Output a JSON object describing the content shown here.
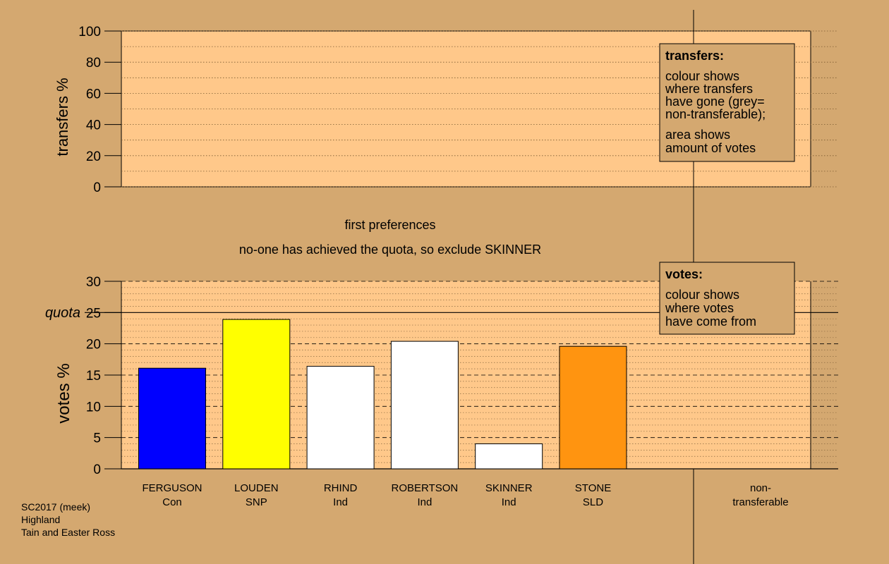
{
  "colors": {
    "background": "#d4a870",
    "plot_fill": "#ffc88a",
    "legend_fill": "#d4a870",
    "non_transferable": "#a0a0a0"
  },
  "top_panel": {
    "ylabel": "transfers %",
    "ticks": [
      "0",
      "20",
      "40",
      "60",
      "80",
      "100"
    ],
    "legend": {
      "title": "transfers:",
      "lines1": [
        "colour shows",
        "where transfers",
        "have gone (grey=",
        "non-transferable);"
      ],
      "lines2": [
        "area shows",
        "amount of votes"
      ]
    }
  },
  "captions": {
    "stage": "first preferences",
    "action": "no-one has achieved the quota, so exclude SKINNER"
  },
  "bottom_panel": {
    "legend": {
      "title": "votes:",
      "lines": [
        "colour shows",
        "where votes",
        "have come from"
      ]
    }
  },
  "chart_data": {
    "type": "bar",
    "xlabel": "",
    "ylabel": "votes %",
    "ylim": [
      0,
      30
    ],
    "yticks": [
      "0",
      "5",
      "10",
      "15",
      "20",
      "25",
      "30"
    ],
    "quota": 25,
    "quota_label": "quota",
    "categories": [
      {
        "name": "FERGUSON",
        "party": "Con",
        "value": 16.1,
        "color": "#0000ff"
      },
      {
        "name": "LOUDEN",
        "party": "SNP",
        "value": 23.9,
        "color": "#ffff00"
      },
      {
        "name": "RHIND",
        "party": "Ind",
        "value": 16.4,
        "color": "#ffffff"
      },
      {
        "name": "ROBERTSON",
        "party": "Ind",
        "value": 20.4,
        "color": "#ffffff"
      },
      {
        "name": "SKINNER",
        "party": "Ind",
        "value": 4.0,
        "color": "#ffffff"
      },
      {
        "name": "STONE",
        "party": "SLD",
        "value": 19.6,
        "color": "#ff9410"
      }
    ],
    "non_transferable_label": [
      "non-",
      "transferable"
    ]
  },
  "footer": {
    "lines": [
      "SC2017 (meek)",
      "Highland",
      "Tain and Easter Ross"
    ]
  }
}
